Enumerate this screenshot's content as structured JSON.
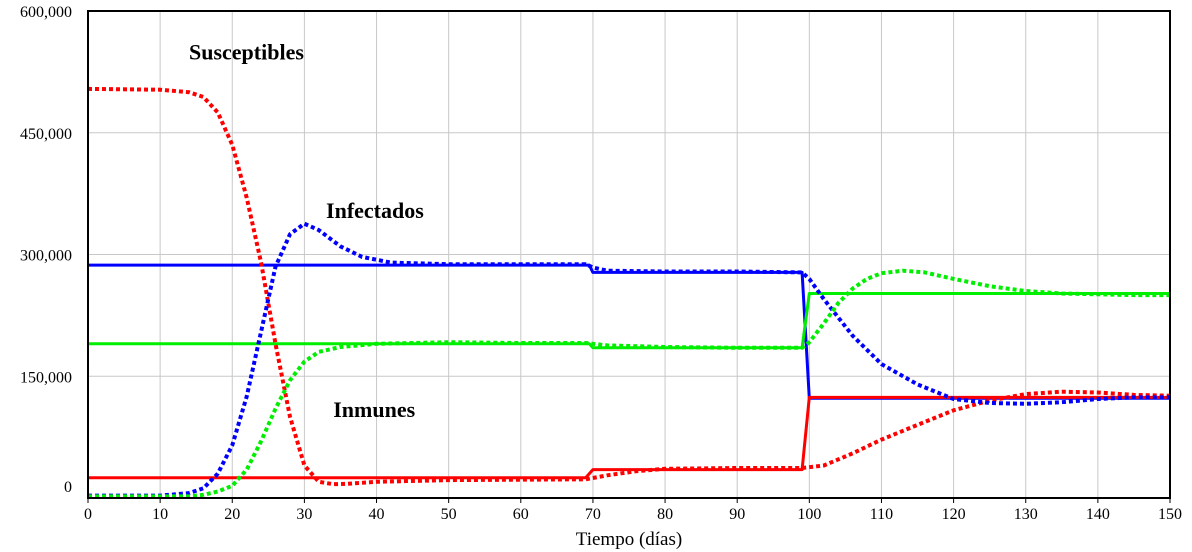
{
  "chart_data": {
    "type": "line",
    "xlabel": "Tiempo (días)",
    "ylabel": "",
    "xlim": [
      0,
      150
    ],
    "ylim": [
      0,
      600000
    ],
    "x_ticks": [
      0,
      10,
      20,
      30,
      40,
      50,
      60,
      70,
      80,
      90,
      100,
      110,
      120,
      130,
      140,
      150
    ],
    "x_tick_labels": [
      "0",
      "10",
      "20",
      "30",
      "40",
      "50",
      "60",
      "70",
      "80",
      "90",
      "100",
      "110",
      "120",
      "130",
      "140",
      "150"
    ],
    "y_ticks": [
      0,
      150000,
      300000,
      450000,
      600000
    ],
    "y_tick_labels": [
      "0",
      "150,000",
      "300,000",
      "450,000",
      "600,000"
    ],
    "grid": true,
    "annotations": [
      {
        "text": "Susceptibles",
        "x": 14,
        "y": 540000
      },
      {
        "text": "Infectados",
        "x": 33,
        "y": 345000
      },
      {
        "text": "Inmunes",
        "x": 34,
        "y": 100000
      }
    ],
    "series": [
      {
        "color": "#0000ff",
        "style": "solid",
        "points": [
          [
            0,
            287000
          ],
          [
            69.5,
            287000
          ],
          [
            70,
            278000
          ],
          [
            99,
            278000
          ],
          [
            100,
            123000
          ],
          [
            150,
            123000
          ]
        ]
      },
      {
        "color": "#00ee00",
        "style": "solid",
        "points": [
          [
            0,
            190000
          ],
          [
            69.5,
            190000
          ],
          [
            70,
            185000
          ],
          [
            99,
            185000
          ],
          [
            100,
            252000
          ],
          [
            150,
            252000
          ]
        ]
      },
      {
        "color": "#ff0000",
        "style": "solid",
        "points": [
          [
            0,
            25000
          ],
          [
            69,
            25000
          ],
          [
            70,
            35000
          ],
          [
            99,
            35000
          ],
          [
            100,
            124000
          ],
          [
            150,
            124000
          ]
        ]
      },
      {
        "color": "#ff0000",
        "style": "dotted",
        "points": [
          [
            0,
            504000
          ],
          [
            10,
            503000
          ],
          [
            14,
            500000
          ],
          [
            16,
            494000
          ],
          [
            18,
            475000
          ],
          [
            20,
            435000
          ],
          [
            22,
            370000
          ],
          [
            24,
            290000
          ],
          [
            26,
            190000
          ],
          [
            28,
            100000
          ],
          [
            30,
            40000
          ],
          [
            32,
            20000
          ],
          [
            34,
            17000
          ],
          [
            36,
            17500
          ],
          [
            40,
            20000
          ],
          [
            50,
            22000
          ],
          [
            60,
            22500
          ],
          [
            69,
            23000
          ],
          [
            72,
            28000
          ],
          [
            76,
            33000
          ],
          [
            80,
            36000
          ],
          [
            90,
            37000
          ],
          [
            99,
            37000
          ],
          [
            102,
            40000
          ],
          [
            106,
            55000
          ],
          [
            110,
            72000
          ],
          [
            115,
            90000
          ],
          [
            120,
            108000
          ],
          [
            125,
            120000
          ],
          [
            130,
            128000
          ],
          [
            135,
            131000
          ],
          [
            140,
            130000
          ],
          [
            145,
            127000
          ],
          [
            150,
            126000
          ]
        ]
      },
      {
        "color": "#0000ff",
        "style": "dotted",
        "points": [
          [
            0,
            3000
          ],
          [
            10,
            3000
          ],
          [
            14,
            6000
          ],
          [
            16,
            12000
          ],
          [
            18,
            30000
          ],
          [
            20,
            65000
          ],
          [
            22,
            125000
          ],
          [
            24,
            205000
          ],
          [
            26,
            285000
          ],
          [
            28,
            325000
          ],
          [
            30,
            338000
          ],
          [
            32,
            330000
          ],
          [
            35,
            310000
          ],
          [
            38,
            297000
          ],
          [
            42,
            290000
          ],
          [
            50,
            288000
          ],
          [
            60,
            288000
          ],
          [
            69,
            288000
          ],
          [
            70,
            284000
          ],
          [
            72,
            280000
          ],
          [
            80,
            279000
          ],
          [
            90,
            279000
          ],
          [
            99,
            278000
          ],
          [
            100,
            270000
          ],
          [
            102,
            245000
          ],
          [
            106,
            200000
          ],
          [
            110,
            165000
          ],
          [
            115,
            140000
          ],
          [
            120,
            122000
          ],
          [
            125,
            117000
          ],
          [
            130,
            116000
          ],
          [
            135,
            118000
          ],
          [
            140,
            122000
          ],
          [
            145,
            124000
          ],
          [
            150,
            124000
          ]
        ]
      },
      {
        "color": "#00ee00",
        "style": "dotted",
        "points": [
          [
            0,
            2000
          ],
          [
            14,
            2000
          ],
          [
            16,
            4000
          ],
          [
            18,
            8000
          ],
          [
            20,
            15000
          ],
          [
            22,
            35000
          ],
          [
            24,
            70000
          ],
          [
            26,
            110000
          ],
          [
            28,
            145000
          ],
          [
            30,
            168000
          ],
          [
            32,
            180000
          ],
          [
            35,
            186000
          ],
          [
            40,
            190000
          ],
          [
            50,
            192000
          ],
          [
            60,
            191000
          ],
          [
            69,
            191000
          ],
          [
            72,
            188000
          ],
          [
            80,
            186000
          ],
          [
            90,
            185000
          ],
          [
            99,
            185000
          ],
          [
            100,
            192000
          ],
          [
            102,
            215000
          ],
          [
            104,
            240000
          ],
          [
            106,
            258000
          ],
          [
            108,
            270000
          ],
          [
            110,
            277000
          ],
          [
            113,
            280000
          ],
          [
            116,
            278000
          ],
          [
            120,
            270000
          ],
          [
            125,
            261000
          ],
          [
            130,
            255000
          ],
          [
            135,
            252000
          ],
          [
            140,
            251000
          ],
          [
            145,
            250000
          ],
          [
            150,
            250000
          ]
        ]
      }
    ]
  }
}
